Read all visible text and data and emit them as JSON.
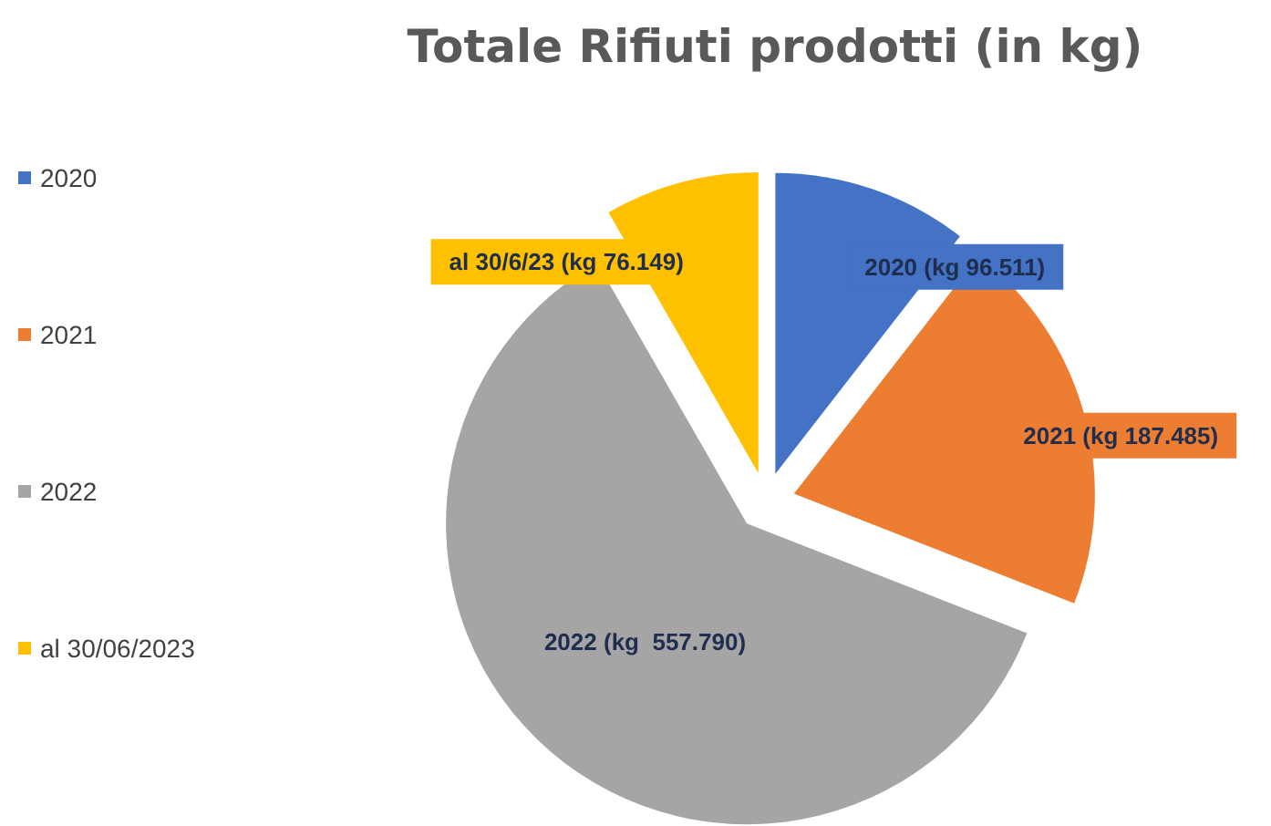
{
  "chart_data": {
    "type": "pie",
    "title": "Totale Rifiuti prodotti (in kg)",
    "categories": [
      "2020",
      "2021",
      "2022",
      "al 30/06/2023"
    ],
    "values": [
      96511,
      187485,
      557790,
      76149
    ],
    "value_labels": [
      "2020 (kg 96.511)",
      "2021 (kg 187.485)",
      "2022 (kg  557.790)",
      "al 30/6/23 (kg 76.149)"
    ],
    "colors": [
      "#4472c4",
      "#ed7d31",
      "#a5a5a5",
      "#ffc000"
    ],
    "legend": "left"
  }
}
